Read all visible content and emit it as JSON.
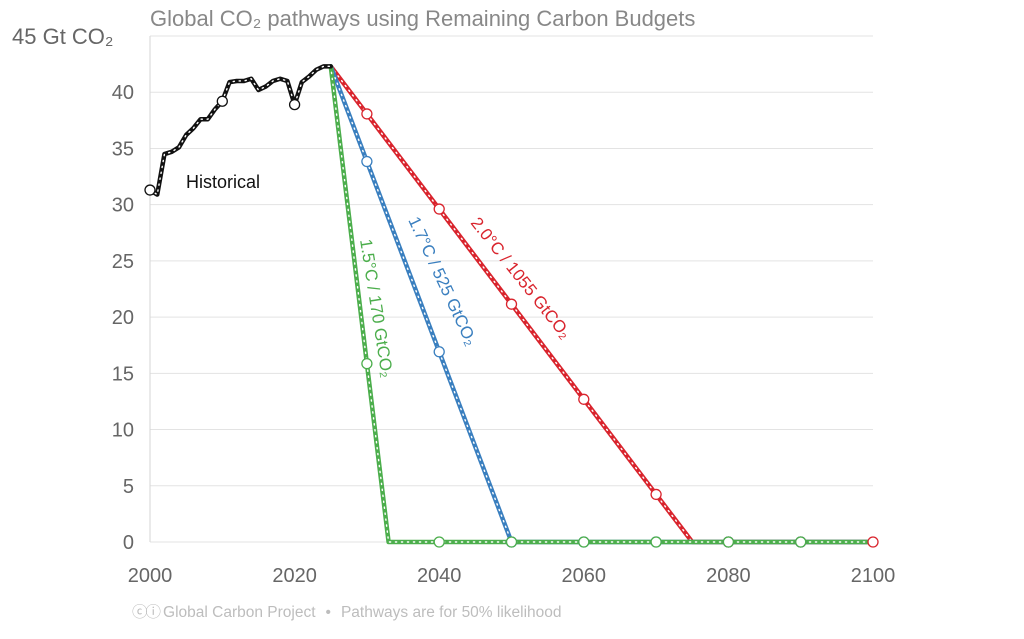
{
  "chart_data": {
    "type": "line",
    "title": "Global CO₂ pathways using Remaining Carbon Budgets",
    "ylabel": "45 Gt CO₂",
    "xlim": [
      2000,
      2100
    ],
    "ylim": [
      0,
      45
    ],
    "xticks": [
      2000,
      2020,
      2040,
      2060,
      2080,
      2100
    ],
    "xtick_labels": [
      "2000",
      "2020",
      "2040",
      "2060",
      "2080",
      "2100"
    ],
    "yticks": [
      0,
      5,
      10,
      15,
      20,
      25,
      30,
      35,
      40
    ],
    "ytick_labels": [
      "0",
      "5",
      "10",
      "15",
      "20",
      "25",
      "30",
      "35",
      "40"
    ],
    "grid": "horizontal",
    "series": [
      {
        "name": "Historical",
        "color": "#111111",
        "x": [
          2000,
          2001,
          2002,
          2003,
          2004,
          2005,
          2006,
          2007,
          2008,
          2009,
          2010,
          2011,
          2012,
          2013,
          2014,
          2015,
          2016,
          2017,
          2018,
          2019,
          2020,
          2021,
          2022,
          2023,
          2024,
          2025
        ],
        "y": [
          31.3,
          30.9,
          34.5,
          34.7,
          35.1,
          36.2,
          36.8,
          37.6,
          37.6,
          38.5,
          39.2,
          40.9,
          41.0,
          41.0,
          41.2,
          40.2,
          40.5,
          41.0,
          41.2,
          41.0,
          38.9,
          40.9,
          41.4,
          42.0,
          42.3,
          42.3
        ],
        "markers_x": [
          2000,
          2010,
          2020
        ]
      },
      {
        "name": "1.5°C / 170 GtCO₂",
        "color": "#4cae4c",
        "x": [
          2025,
          2033,
          2100
        ],
        "y": [
          42.3,
          0,
          0
        ],
        "markers_x": [
          2030,
          2040,
          2050,
          2060,
          2070,
          2080,
          2090
        ]
      },
      {
        "name": "1.7°C / 525 GtCO₂",
        "color": "#3a7fbf",
        "x": [
          2025,
          2050,
          2100
        ],
        "y": [
          42.3,
          0,
          0
        ],
        "markers_x": [
          2030,
          2040,
          2050,
          2060,
          2070,
          2080,
          2090
        ]
      },
      {
        "name": "2.0°C / 1055 GtCO₂",
        "color": "#d9242d",
        "x": [
          2025,
          2075,
          2100
        ],
        "y": [
          42.3,
          0,
          0
        ],
        "markers_x": [
          2030,
          2040,
          2050,
          2060,
          2070,
          2080,
          2090,
          2100
        ]
      }
    ],
    "annotations": {
      "historical": "Historical",
      "label_15": "1.5°C / 170 GtCO₂",
      "label_17": "1.7°C / 525 GtCO₂",
      "label_20": "2.0°C / 1055 GtCO₂"
    }
  },
  "footer": {
    "source": "Global Carbon Project",
    "note": "Pathways are for 50% likelihood"
  }
}
